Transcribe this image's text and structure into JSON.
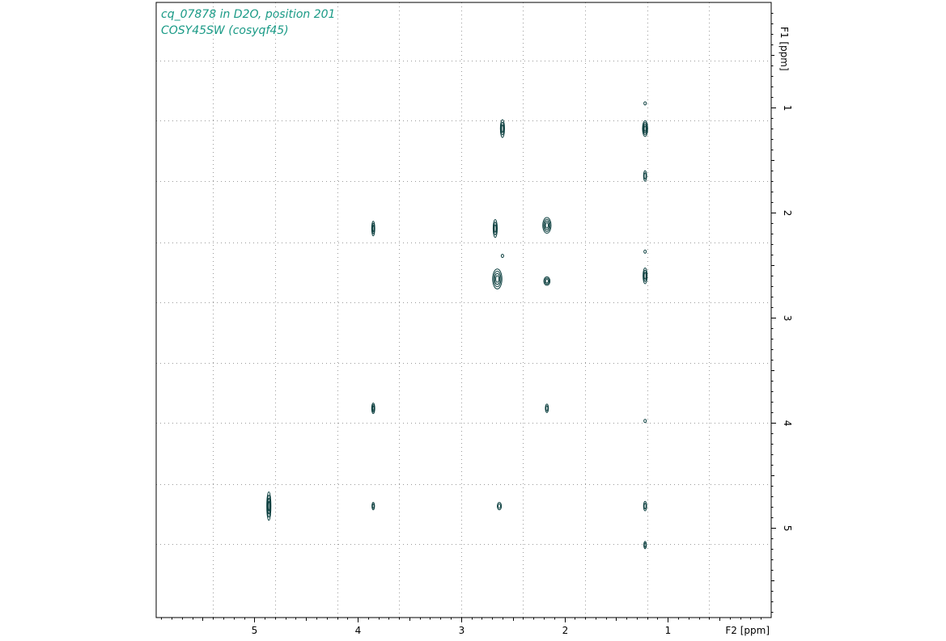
{
  "title_lines": [
    "cq_07878 in D2O, position 201",
    "COSY45SW (cosyqf45)"
  ],
  "colors": {
    "title": "#1a9a86",
    "contour": "#0d4040",
    "frame": "#000000",
    "grid": "#9a9a9a"
  },
  "chart_data": {
    "type": "heatmap",
    "subtype": "2D NMR COSY contour plot",
    "title": [
      "cq_07878 in D2O, position 201",
      "COSY45SW (cosyqf45)"
    ],
    "xlabel": "F2 [ppm]",
    "ylabel": "F1 [ppm]",
    "x_reversed": true,
    "y_reversed": true,
    "xlim": [
      5.95,
      0.0
    ],
    "ylim": [
      0.0,
      5.85
    ],
    "x_ticks": [
      5,
      4,
      3,
      2,
      1
    ],
    "y_ticks": [
      1,
      2,
      3,
      4,
      5
    ],
    "grid": true,
    "grid_style": "dotted",
    "x_grid": [
      5.4,
      4.8,
      4.2,
      3.6,
      3.0,
      2.4,
      1.8,
      1.2,
      0.6
    ],
    "y_grid": [
      0.55,
      1.12,
      1.7,
      2.28,
      2.85,
      3.43,
      4.0,
      4.58,
      5.15
    ],
    "peaks": [
      {
        "f2": 2.6,
        "f1": 1.2,
        "w": 0.04,
        "h": 0.17,
        "levels": 3
      },
      {
        "f2": 1.22,
        "f1": 1.2,
        "w": 0.05,
        "h": 0.15,
        "levels": 4
      },
      {
        "f2": 1.22,
        "f1": 1.65,
        "w": 0.03,
        "h": 0.1,
        "levels": 2
      },
      {
        "f2": 3.85,
        "f1": 2.15,
        "w": 0.03,
        "h": 0.14,
        "levels": 3
      },
      {
        "f2": 2.67,
        "f1": 2.15,
        "w": 0.04,
        "h": 0.17,
        "levels": 3
      },
      {
        "f2": 2.17,
        "f1": 2.12,
        "w": 0.08,
        "h": 0.15,
        "levels": 4
      },
      {
        "f2": 2.65,
        "f1": 2.63,
        "w": 0.09,
        "h": 0.19,
        "levels": 4
      },
      {
        "f2": 2.17,
        "f1": 2.65,
        "w": 0.06,
        "h": 0.08,
        "levels": 3
      },
      {
        "f2": 1.22,
        "f1": 2.6,
        "w": 0.04,
        "h": 0.15,
        "levels": 3
      },
      {
        "f2": 3.85,
        "f1": 3.86,
        "w": 0.03,
        "h": 0.1,
        "levels": 3
      },
      {
        "f2": 2.17,
        "f1": 3.86,
        "w": 0.03,
        "h": 0.08,
        "levels": 2
      },
      {
        "f2": 1.22,
        "f1": 3.98,
        "w": 0.015,
        "h": 0.03,
        "levels": 1
      },
      {
        "f2": 4.86,
        "f1": 4.79,
        "w": 0.04,
        "h": 0.27,
        "levels": 4
      },
      {
        "f2": 3.85,
        "f1": 4.79,
        "w": 0.025,
        "h": 0.07,
        "levels": 2
      },
      {
        "f2": 2.63,
        "f1": 4.79,
        "w": 0.04,
        "h": 0.07,
        "levels": 2
      },
      {
        "f2": 1.22,
        "f1": 4.79,
        "w": 0.03,
        "h": 0.09,
        "levels": 2
      },
      {
        "f2": 1.22,
        "f1": 5.16,
        "w": 0.025,
        "h": 0.07,
        "levels": 2
      },
      {
        "f2": 1.22,
        "f1": 2.37,
        "w": 0.01,
        "h": 0.02,
        "levels": 1
      },
      {
        "f2": 2.6,
        "f1": 2.41,
        "w": 0.01,
        "h": 0.02,
        "levels": 1
      },
      {
        "f2": 1.22,
        "f1": 0.96,
        "w": 0.01,
        "h": 0.02,
        "levels": 1
      }
    ]
  }
}
